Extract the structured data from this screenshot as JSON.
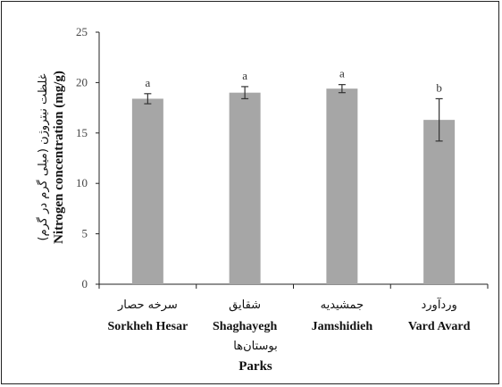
{
  "chart_data": {
    "type": "bar",
    "categories": [
      "Sorkheh Hesar",
      "Shaghayegh",
      "Jamshidieh",
      "Vard Avard"
    ],
    "categories_fa": [
      "سرخه حصار",
      "شقایق",
      "جمشیدیه",
      "وردآورد"
    ],
    "values": [
      18.4,
      19.0,
      19.4,
      16.3
    ],
    "errors": [
      0.5,
      0.6,
      0.4,
      2.1
    ],
    "significance": [
      "a",
      "a",
      "a",
      "b"
    ],
    "xlabel": "Parks",
    "xlabel_fa": "بوستان‌ها",
    "ylabel": "Nitrogen concentration (mg/g)",
    "ylabel_fa": "غلظت نیتروژن (میلی گرم در گرم)",
    "ylim": [
      0,
      25
    ],
    "yticks": [
      0,
      5,
      10,
      15,
      20,
      25
    ],
    "bar_color": "#a6a6a6",
    "error_bar_color": "#333333",
    "grid": false,
    "legend": "none"
  }
}
